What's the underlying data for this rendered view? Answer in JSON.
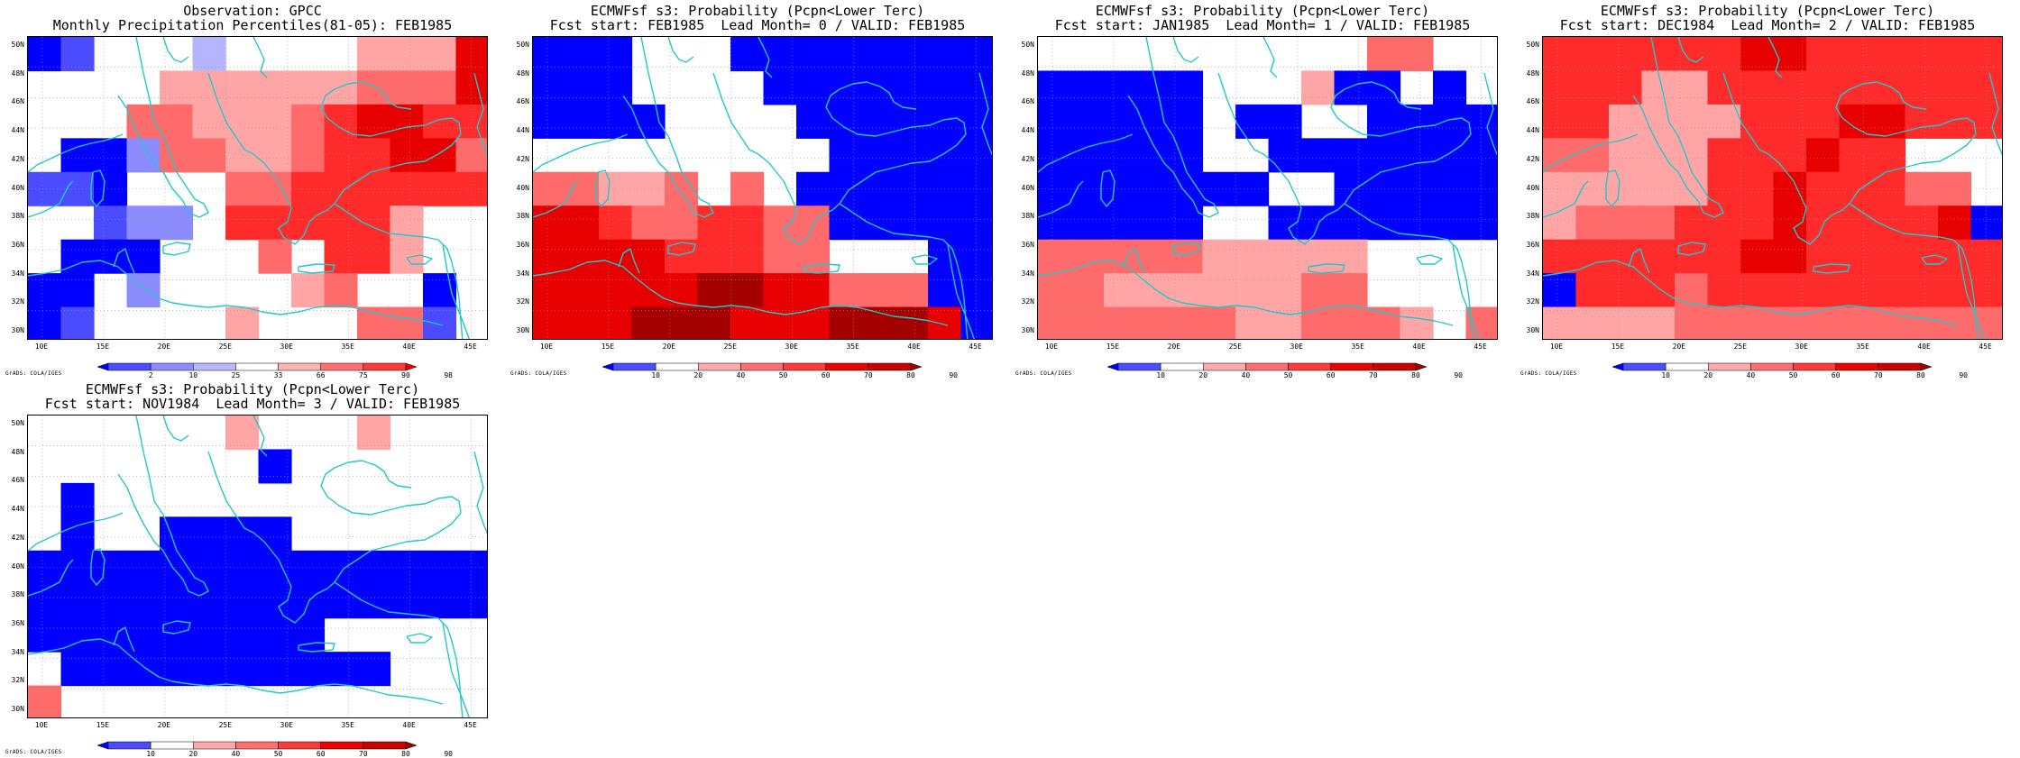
{
  "panels": [
    {
      "title_line1": "Observation: GPCC",
      "title_line2": "Monthly Precipitation Percentiles(81-05): FEB1985",
      "colorbar_type": "obs"
    },
    {
      "title_line1": "ECMWFsf s3: Probability (Pcpn<Lower Terc)",
      "title_line2": "Fcst start: FEB1985  Lead Month= 0 / VALID: FEB1985",
      "colorbar_type": "prob"
    },
    {
      "title_line1": "ECMWFsf s3: Probability (Pcpn<Lower Terc)",
      "title_line2": "Fcst start: JAN1985  Lead Month= 1 / VALID: FEB1985",
      "colorbar_type": "prob"
    },
    {
      "title_line1": "ECMWFsf s3: Probability (Pcpn<Lower Terc)",
      "title_line2": "Fcst start: DEC1984  Lead Month= 2 / VALID: FEB1985",
      "colorbar_type": "prob"
    },
    {
      "title_line1": "ECMWFsf s3: Probability (Pcpn<Lower Terc)",
      "title_line2": "Fcst start: NOV1984  Lead Month= 3 / VALID: FEB1985",
      "colorbar_type": "prob"
    }
  ],
  "lat_labels": [
    "50N",
    "48N",
    "46N",
    "44N",
    "42N",
    "40N",
    "38N",
    "36N",
    "34N",
    "32N",
    "30N"
  ],
  "lon_labels": [
    "10E",
    "15E",
    "20E",
    "25E",
    "30E",
    "35E",
    "40E",
    "45E"
  ],
  "obs_colorbar": {
    "labels": [
      "2",
      "10",
      "25",
      "33",
      "66",
      "75",
      "90",
      "98"
    ],
    "colors": [
      "#0000ff",
      "#4b4bff",
      "#8c8cff",
      "#b9b9ff",
      "#ffffff",
      "#ffb4b4",
      "#ff7070",
      "#ff3a3a",
      "#ee0000"
    ]
  },
  "prob_colorbar": {
    "labels": [
      "10",
      "20",
      "40",
      "50",
      "60",
      "70",
      "80",
      "90"
    ],
    "colors": [
      "#0000ff",
      "#4b4bff",
      "#ffffff",
      "#ffaaaa",
      "#ff7070",
      "#ff3a3a",
      "#ee0000",
      "#cc0000",
      "#9a0000"
    ]
  },
  "grads_credit": "GrADS: COLA/IGES",
  "coastline_color": "#22c8c8"
}
